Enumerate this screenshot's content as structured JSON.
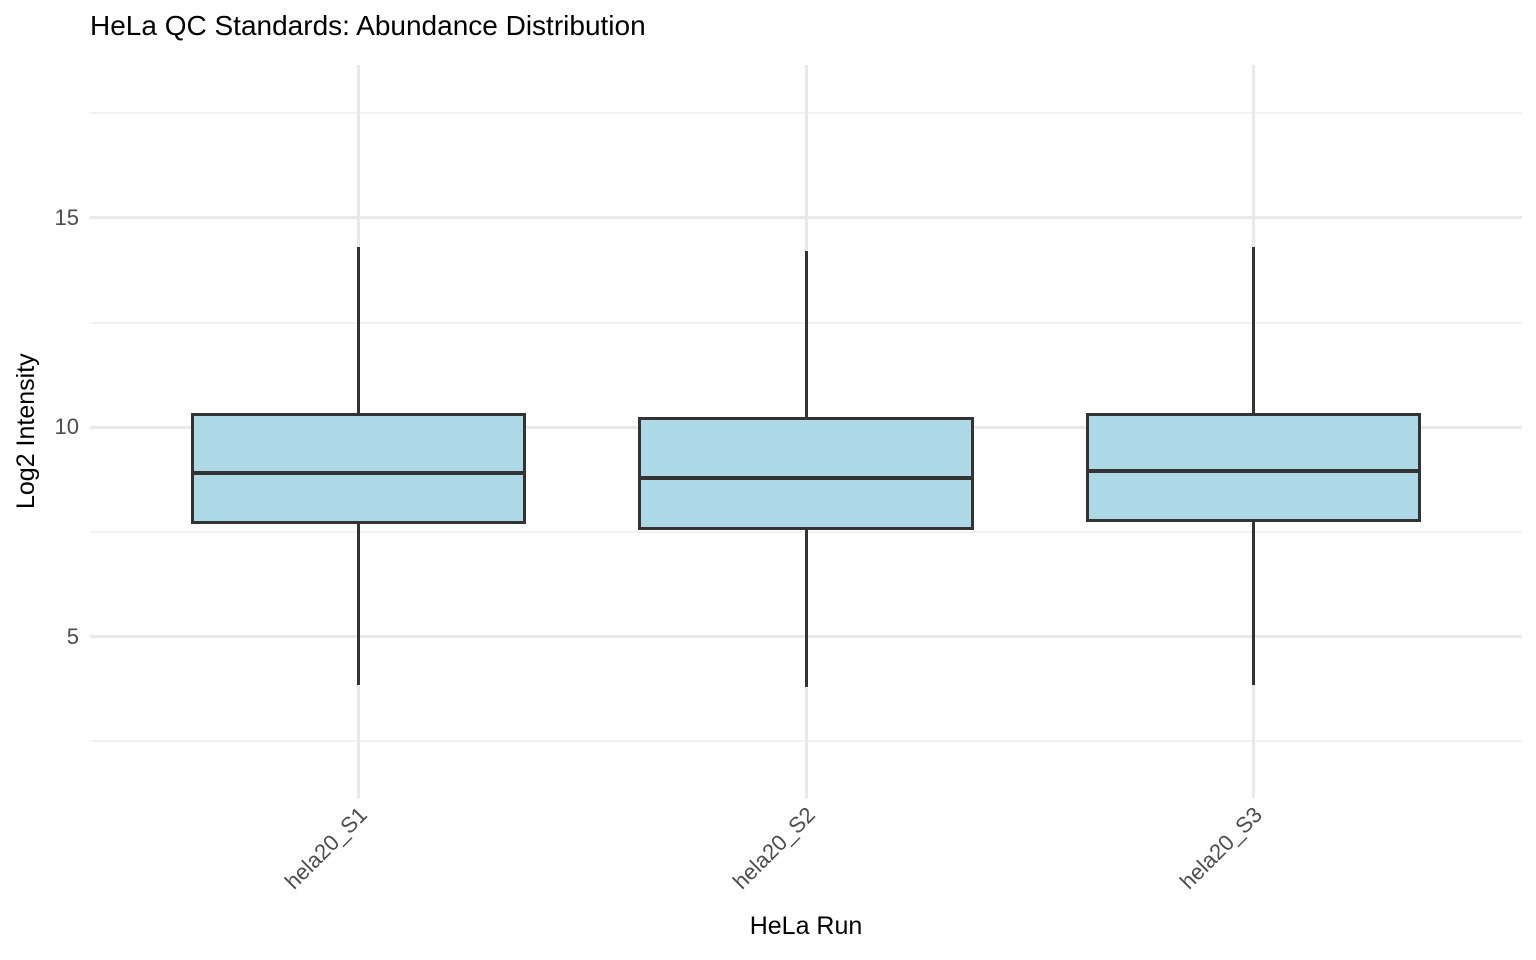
{
  "chart_data": {
    "type": "boxplot",
    "title": "HeLa QC Standards: Abundance Distribution",
    "xlabel": "HeLa Run",
    "ylabel": "Log2 Intensity",
    "categories": [
      "hela20_S1",
      "hela20_S2",
      "hela20_S3"
    ],
    "series": [
      {
        "name": "hela20_S1",
        "whisker_low": 3.85,
        "q1": 7.7,
        "median": 8.9,
        "q3": 10.35,
        "whisker_high": 14.3
      },
      {
        "name": "hela20_S2",
        "whisker_low": 3.8,
        "q1": 7.55,
        "median": 8.8,
        "q3": 10.25,
        "whisker_high": 14.2
      },
      {
        "name": "hela20_S3",
        "whisker_low": 3.85,
        "q1": 7.75,
        "median": 8.95,
        "q3": 10.35,
        "whisker_high": 14.3
      }
    ],
    "ylim": [
      1.15,
      18.65
    ],
    "yticks": [
      5,
      10,
      15
    ],
    "yticks_minor": [
      2.5,
      7.5,
      12.5,
      17.5
    ],
    "grid": "on",
    "legend": "none",
    "box_width_fraction": 0.75,
    "colors": {
      "box_fill": "#add8e6",
      "box_border": "#333333",
      "grid_major": "#e9e9e9",
      "grid_minor": "#f2f2f2",
      "tick_label": "#4d4d4d",
      "text": "#000000",
      "background": "#ffffff"
    }
  }
}
